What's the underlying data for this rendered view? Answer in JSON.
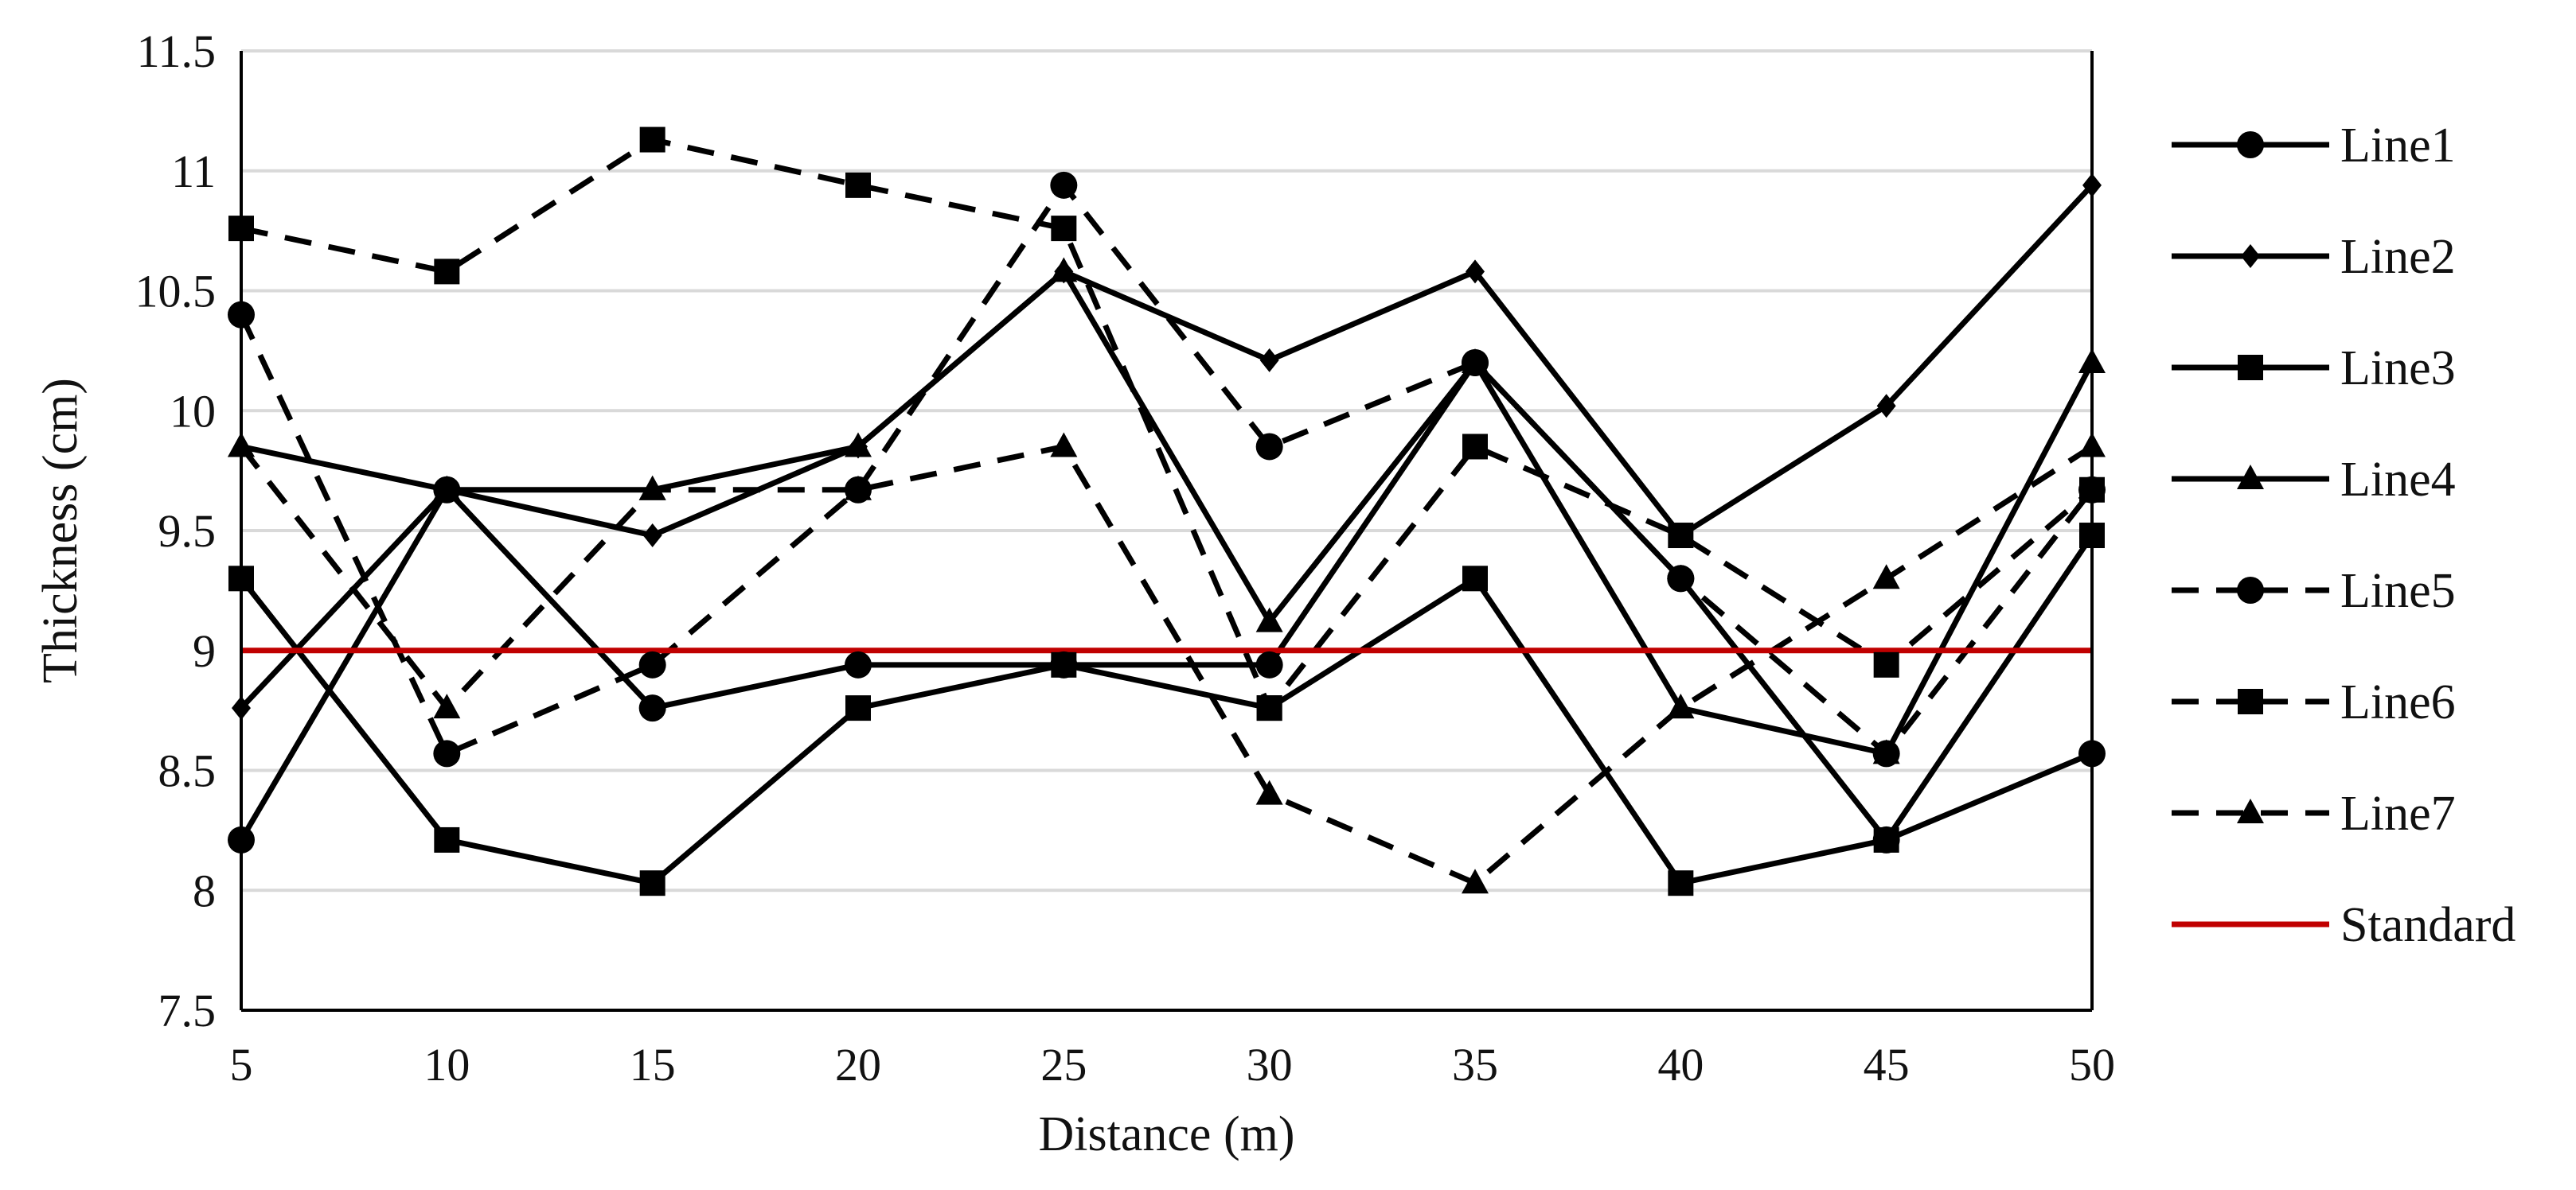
{
  "chart_data": {
    "type": "line",
    "title": "",
    "xlabel": "Distance (m)",
    "ylabel": "Thickness (cm)",
    "x": [
      5,
      10,
      15,
      20,
      25,
      30,
      35,
      40,
      45,
      50
    ],
    "x_tick_labels": [
      "5",
      "10",
      "15",
      "20",
      "25",
      "30",
      "35",
      "40",
      "45",
      "50"
    ],
    "ylim": [
      7.5,
      11.5
    ],
    "y_ticks": [
      7.5,
      8,
      8.5,
      9,
      9.5,
      10,
      10.5,
      11,
      11.5
    ],
    "y_tick_labels": [
      "7.5",
      "8",
      "8.5",
      "9",
      "9.5",
      "10",
      "10.5",
      "11",
      "11.5"
    ],
    "grid": "horizontal",
    "legend_position": "right",
    "series": [
      {
        "name": "Line1",
        "marker": "circle",
        "dash": "solid",
        "color": "#000000",
        "values": [
          8.21,
          9.67,
          8.76,
          8.94,
          8.94,
          8.94,
          10.2,
          9.3,
          8.21,
          8.57
        ]
      },
      {
        "name": "Line2",
        "marker": "diamond",
        "dash": "solid",
        "color": "#000000",
        "values": [
          8.76,
          9.67,
          9.48,
          9.85,
          10.58,
          10.21,
          10.58,
          9.48,
          10.02,
          10.94
        ]
      },
      {
        "name": "Line3",
        "marker": "square",
        "dash": "solid",
        "color": "#000000",
        "values": [
          9.3,
          8.21,
          8.03,
          8.76,
          8.94,
          8.76,
          9.3,
          8.03,
          8.21,
          9.48
        ]
      },
      {
        "name": "Line4",
        "marker": "triangle",
        "dash": "solid",
        "color": "#000000",
        "values": [
          9.85,
          9.67,
          9.67,
          9.85,
          10.58,
          9.12,
          10.2,
          8.76,
          8.57,
          10.2
        ]
      },
      {
        "name": "Line5",
        "marker": "circle",
        "dash": "dashed",
        "color": "#000000",
        "values": [
          10.4,
          8.57,
          8.94,
          9.67,
          10.94,
          9.85,
          10.2,
          9.3,
          8.57,
          9.67
        ]
      },
      {
        "name": "Line6",
        "marker": "square",
        "dash": "dashed",
        "color": "#000000",
        "values": [
          10.76,
          10.58,
          11.13,
          10.94,
          10.76,
          8.76,
          9.85,
          9.48,
          8.94,
          9.67
        ]
      },
      {
        "name": "Line7",
        "marker": "triangle",
        "dash": "dashed",
        "color": "#000000",
        "values": [
          9.85,
          8.76,
          9.67,
          9.67,
          9.85,
          8.4,
          8.03,
          8.76,
          9.3,
          9.85
        ]
      },
      {
        "name": "Standard",
        "marker": "none",
        "dash": "solid",
        "color": "#c00000",
        "values": [
          9,
          9,
          9,
          9,
          9,
          9,
          9,
          9,
          9,
          9
        ]
      }
    ]
  }
}
